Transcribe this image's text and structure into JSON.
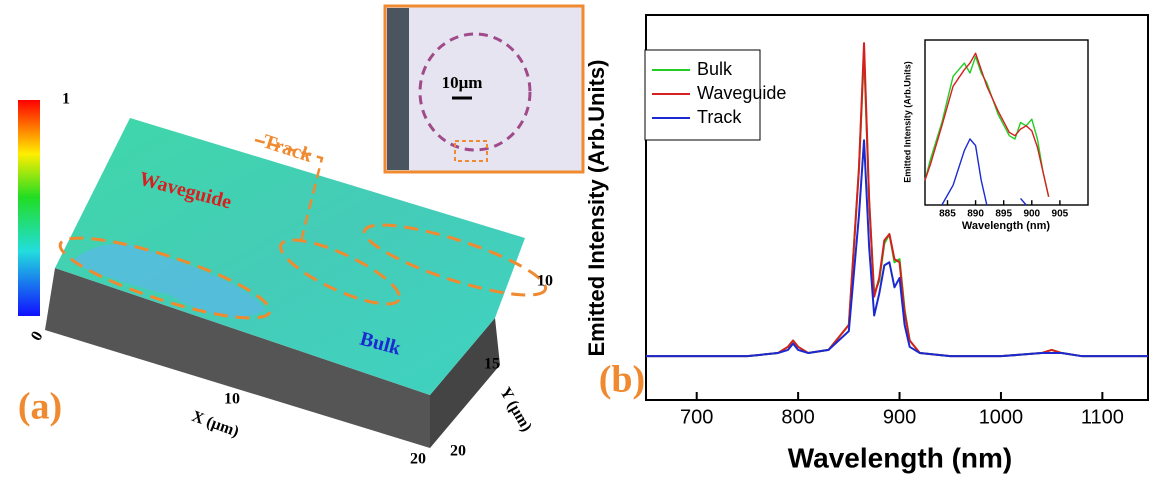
{
  "panel_a": {
    "label": "(a)",
    "colorbar_max": 1,
    "colorbar_min": 0,
    "annotations": [
      "Track",
      "Waveguide",
      "Bulk"
    ],
    "scale_bar": "10μm",
    "x_label": "X (μm)",
    "x_ticks": [
      10,
      20
    ],
    "y_label": "Y (μm)",
    "y_ticks": [
      10,
      15,
      20
    ],
    "origin": 0
  },
  "panel_b_label": "(b)",
  "chart_data": [
    {
      "type": "line",
      "x_label": "Wavelength (nm)",
      "y_label": "Emitted Intensity (Arb.Units)",
      "xlim": [
        650,
        1145
      ],
      "ylim": [
        -0.14,
        1.09
      ],
      "xticks": [
        700,
        800,
        900,
        1000,
        1100
      ],
      "x": [
        650,
        700,
        750,
        780,
        790,
        795,
        800,
        810,
        830,
        850,
        860,
        865,
        870,
        875,
        880,
        885,
        890,
        895,
        900,
        905,
        910,
        920,
        950,
        1000,
        1040,
        1050,
        1060,
        1080,
        1100,
        1145
      ],
      "series": [
        {
          "name": "Bulk",
          "color": "#22cc22",
          "values": [
            0,
            0,
            0,
            0.01,
            0.03,
            0.05,
            0.03,
            0.01,
            0.02,
            0.1,
            0.6,
            0.97,
            0.5,
            0.2,
            0.24,
            0.36,
            0.39,
            0.3,
            0.31,
            0.15,
            0.05,
            0.01,
            0,
            0,
            0.01,
            0.02,
            0.01,
            0,
            0,
            0
          ]
        },
        {
          "name": "Waveguide",
          "color": "#d62020",
          "values": [
            0,
            0,
            0,
            0.01,
            0.03,
            0.05,
            0.03,
            0.01,
            0.02,
            0.1,
            0.6,
            1,
            0.5,
            0.19,
            0.25,
            0.37,
            0.39,
            0.31,
            0.3,
            0.14,
            0.05,
            0.01,
            0,
            0,
            0.01,
            0.02,
            0.01,
            0,
            0,
            0
          ]
        },
        {
          "name": "Track",
          "color": "#1a2ad0",
          "values": [
            0,
            0,
            0,
            0.01,
            0.02,
            0.04,
            0.02,
            0.01,
            0.02,
            0.08,
            0.45,
            0.69,
            0.35,
            0.13,
            0.2,
            0.29,
            0.3,
            0.22,
            0.25,
            0.1,
            0.03,
            0.01,
            0,
            0,
            0.01,
            0.01,
            0.01,
            0,
            0,
            0
          ]
        }
      ],
      "legend": "upper left"
    },
    {
      "type": "line",
      "x_label": "Wavelength (nm)",
      "y_label": "Emitted Intensity (Arb.Units)",
      "xlim": [
        881,
        910
      ],
      "ylim": [
        0,
        1
      ],
      "xticks": [
        885,
        890,
        895,
        900,
        905
      ],
      "x": [
        881,
        882,
        884,
        886,
        888,
        889,
        890,
        891,
        892,
        894,
        896,
        897,
        898,
        899,
        900,
        901,
        902,
        903
      ],
      "series": [
        {
          "name": "Bulk",
          "color": "#22cc22",
          "values": [
            0.15,
            0.28,
            0.5,
            0.78,
            0.86,
            0.8,
            0.9,
            0.8,
            0.74,
            0.55,
            0.42,
            0.4,
            0.5,
            0.48,
            0.52,
            0.4,
            0.2,
            0.05
          ]
        },
        {
          "name": "Waveguide",
          "color": "#d62020",
          "values": [
            0.15,
            0.25,
            0.48,
            0.72,
            0.82,
            0.86,
            0.92,
            0.82,
            0.72,
            0.57,
            0.44,
            0.42,
            0.46,
            0.48,
            0.45,
            0.35,
            0.2,
            0.05
          ]
        },
        {
          "name": "Track",
          "color": "#1a2ad0",
          "values": [
            null,
            null,
            0,
            0.12,
            0.33,
            0.4,
            0.36,
            0.15,
            0,
            null,
            null,
            null,
            0.04,
            0,
            null,
            null,
            null,
            null
          ]
        }
      ]
    }
  ]
}
